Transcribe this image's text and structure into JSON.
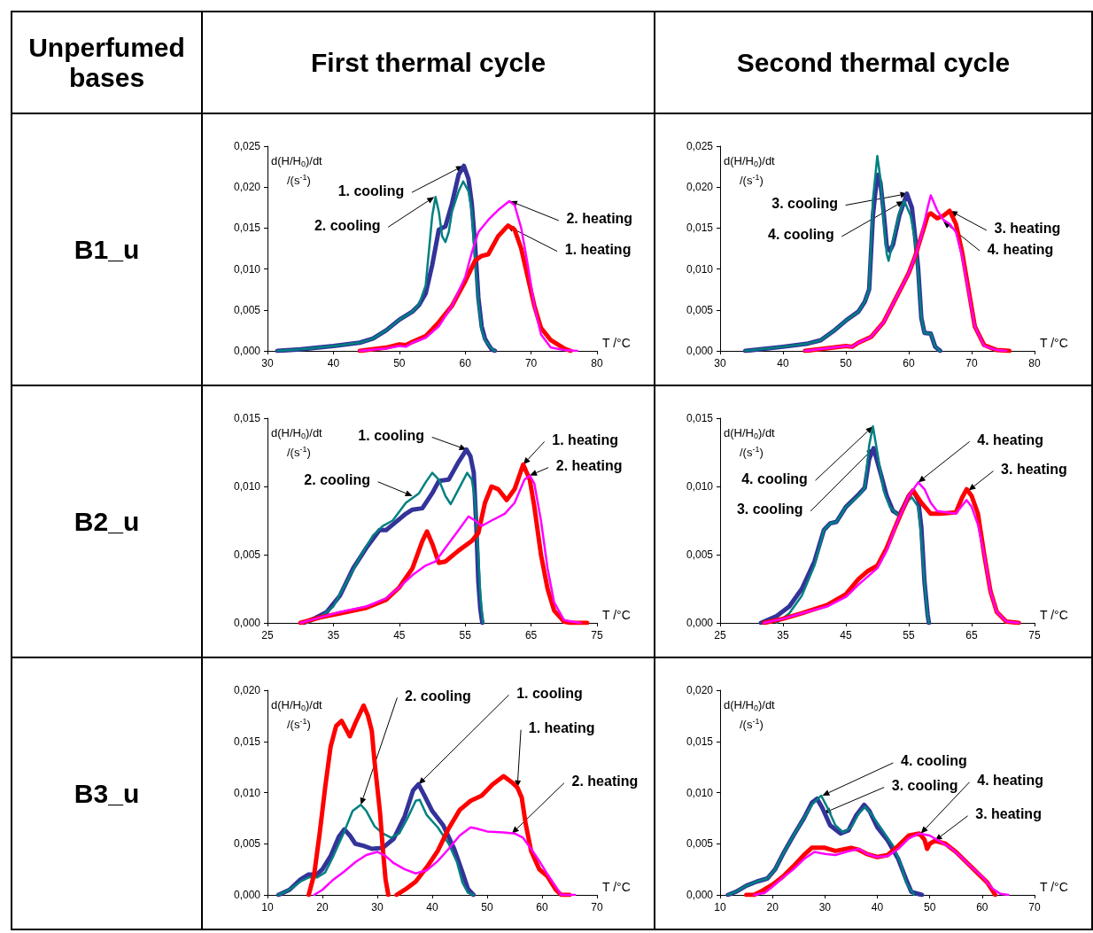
{
  "chart_data": [
    {
      "type": "line",
      "title": "First thermal cycle",
      "subtitle": "B1_u",
      "xlabel": "T /°C",
      "ylabel": "d(H/H$_{0}$)/dt /(s$^{-1}$)",
      "xlim": [
        30,
        80
      ],
      "xticks": [
        30,
        40,
        50,
        60,
        70,
        80
      ],
      "ylim": [
        0,
        0.025
      ],
      "yticks": [
        {
          "value": 0,
          "label": "0,000"
        },
        {
          "value": 0.005,
          "label": "0,005"
        },
        {
          "value": 0.01,
          "label": "0,010"
        },
        {
          "value": 0.015,
          "label": "0,015"
        },
        {
          "value": 0.02,
          "label": "0,020"
        },
        {
          "value": 0.025,
          "label": "0,025"
        }
      ],
      "annotations": [
        "Unperfumed bases",
        {
          "text": "1. cooling",
          "x": 59.7,
          "y": 0.0226
        },
        {
          "text": "2. cooling",
          "x": 55.3,
          "y": 0.0188
        },
        {
          "text": "2. heating",
          "x": 66.8,
          "y": 0.0183
        },
        {
          "text": "1. heating",
          "x": 66.3,
          "y": 0.0153
        }
      ],
      "series": [
        {
          "color": "#333399",
          "x": [
            31.5,
            35,
            40,
            44,
            46,
            48,
            50,
            52,
            53,
            54,
            55,
            56,
            57,
            58,
            59,
            59.8,
            60.5,
            61,
            61.5,
            62,
            62.5,
            63,
            63.5,
            64,
            64.5
          ],
          "values": [
            0,
            0.0002,
            0.0006,
            0.001,
            0.0015,
            0.0025,
            0.0038,
            0.0048,
            0.0056,
            0.007,
            0.0105,
            0.0148,
            0.0152,
            0.018,
            0.0215,
            0.0226,
            0.021,
            0.018,
            0.013,
            0.0065,
            0.003,
            0.0015,
            0.0008,
            0.0002,
            0
          ]
        },
        {
          "color": "#008080",
          "x": [
            31.5,
            35,
            40,
            44,
            46,
            48,
            50,
            52,
            53,
            54,
            55,
            55.5,
            56,
            56.5,
            57,
            57.5,
            58,
            59,
            59.7,
            60.5,
            61,
            61.5,
            62,
            62.5,
            63,
            64,
            64.5
          ],
          "values": [
            0,
            0.0002,
            0.0006,
            0.001,
            0.0015,
            0.0025,
            0.0038,
            0.0048,
            0.0057,
            0.008,
            0.0165,
            0.0188,
            0.017,
            0.014,
            0.0133,
            0.0145,
            0.017,
            0.0195,
            0.0207,
            0.0195,
            0.017,
            0.011,
            0.006,
            0.0025,
            0.0013,
            0.0003,
            0
          ]
        },
        {
          "color": "#ff0000",
          "x": [
            44,
            48,
            50,
            51,
            52,
            54,
            56,
            58,
            60,
            61.5,
            62.5,
            63.5,
            65,
            66.5,
            67.5,
            68.5,
            69.5,
            70.5,
            71.5,
            73,
            75,
            76
          ],
          "values": [
            0,
            0.0004,
            0.0008,
            0.0007,
            0.0011,
            0.0018,
            0.0035,
            0.0055,
            0.0085,
            0.011,
            0.0116,
            0.0118,
            0.014,
            0.0153,
            0.0148,
            0.0125,
            0.009,
            0.0055,
            0.0028,
            0.0013,
            0.0003,
            0
          ]
        },
        {
          "color": "#ff00ff",
          "x": [
            44,
            48,
            50,
            51,
            52,
            54,
            56,
            58,
            60,
            61,
            62,
            63.5,
            65,
            66.7,
            67.5,
            68.5,
            69.5,
            70.5,
            71.5,
            73,
            75,
            77
          ],
          "values": [
            0,
            0.0003,
            0.0006,
            0.0005,
            0.001,
            0.0016,
            0.003,
            0.0055,
            0.009,
            0.012,
            0.0145,
            0.016,
            0.0172,
            0.0183,
            0.0178,
            0.015,
            0.0105,
            0.0055,
            0.002,
            0.0004,
            0.0001,
            0
          ]
        }
      ]
    },
    {
      "type": "line",
      "title": "Second thermal cycle",
      "xlabel": "T /°C",
      "ylabel": "d(H/H$_{0}$)/dt /(s$^{-1}$)",
      "xlim": [
        30,
        80
      ],
      "xticks": [
        30,
        40,
        50,
        60,
        70,
        80
      ],
      "ylim": [
        0,
        0.025
      ],
      "yticks": [
        {
          "value": 0,
          "label": "0,000"
        },
        {
          "value": 0.005,
          "label": "0,005"
        },
        {
          "value": 0.01,
          "label": "0,010"
        },
        {
          "value": 0.015,
          "label": "0,015"
        },
        {
          "value": 0.02,
          "label": "0,020"
        },
        {
          "value": 0.025,
          "label": "0,025"
        }
      ],
      "annotations": [
        {
          "text": "3. cooling",
          "x": 59.8,
          "y": 0.0192
        },
        {
          "text": "4. cooling",
          "x": 59.2,
          "y": 0.0183
        },
        {
          "text": "3. heating",
          "x": 66.6,
          "y": 0.0171
        },
        {
          "text": "4. heating",
          "x": 65.5,
          "y": 0.0158
        }
      ],
      "series": [
        {
          "color": "#333399",
          "x": [
            34,
            40,
            44,
            46,
            48,
            50,
            52,
            53,
            53.7,
            54.3,
            54.7,
            55.1,
            55.5,
            56,
            56.5,
            57,
            57.5,
            58.5,
            59.7,
            60.5,
            61,
            61.5,
            62,
            62.5,
            63.5,
            64.2,
            65
          ],
          "values": [
            0,
            0.0005,
            0.0009,
            0.0013,
            0.0024,
            0.0037,
            0.0048,
            0.006,
            0.0075,
            0.0165,
            0.0195,
            0.0215,
            0.0205,
            0.017,
            0.0128,
            0.0122,
            0.013,
            0.0165,
            0.0192,
            0.0175,
            0.014,
            0.01,
            0.004,
            0.0022,
            0.0021,
            0.0005,
            0
          ]
        },
        {
          "color": "#008080",
          "x": [
            34,
            40,
            44,
            46,
            48,
            50,
            52,
            53,
            53.7,
            54.3,
            54.7,
            55,
            55.5,
            56,
            56.5,
            56.8,
            57.5,
            58.5,
            59.3,
            60.3,
            61,
            61.5,
            62,
            62.5,
            63.5,
            64.2,
            65
          ],
          "values": [
            0,
            0.0005,
            0.0009,
            0.0013,
            0.0024,
            0.0037,
            0.0048,
            0.006,
            0.0075,
            0.0185,
            0.0215,
            0.0238,
            0.021,
            0.016,
            0.0118,
            0.011,
            0.0135,
            0.0168,
            0.0183,
            0.0165,
            0.0135,
            0.0095,
            0.004,
            0.0022,
            0.0021,
            0.0005,
            0
          ]
        },
        {
          "color": "#ff0000",
          "x": [
            43.5,
            48,
            50,
            51,
            52,
            54,
            56,
            58,
            60,
            61,
            62,
            63,
            63.5,
            64.5,
            65.5,
            66.5,
            67.5,
            68.5,
            69.5,
            70.5,
            72,
            74,
            76
          ],
          "values": [
            0,
            0.0004,
            0.0006,
            0.0005,
            0.001,
            0.0017,
            0.0035,
            0.0065,
            0.0095,
            0.0115,
            0.014,
            0.0165,
            0.0168,
            0.0162,
            0.0165,
            0.0171,
            0.0155,
            0.012,
            0.0075,
            0.003,
            0.0007,
            0.0001,
            0
          ]
        },
        {
          "color": "#ff00ff",
          "x": [
            43.5,
            48,
            50,
            51,
            52,
            54,
            56,
            58,
            60,
            61,
            62,
            63,
            63.5,
            64.5,
            65.5,
            66.5,
            67.5,
            68.5,
            69.5,
            70.5,
            72,
            74,
            75.5
          ],
          "values": [
            0,
            0.0004,
            0.0006,
            0.0005,
            0.001,
            0.0017,
            0.0035,
            0.0065,
            0.0095,
            0.0115,
            0.014,
            0.0175,
            0.019,
            0.0172,
            0.016,
            0.0155,
            0.0145,
            0.0115,
            0.0072,
            0.003,
            0.0006,
            0.0001,
            0
          ]
        }
      ]
    },
    {
      "type": "line",
      "subtitle": "B2_u",
      "xlabel": "T /°C",
      "ylabel": "d(H/H$_{0}$)/dt /(s$^{-1}$)",
      "xlim": [
        25,
        75
      ],
      "xticks": [
        25,
        35,
        45,
        55,
        65,
        75
      ],
      "ylim": [
        0,
        0.015
      ],
      "yticks": [
        {
          "value": 0,
          "label": "0,000"
        },
        {
          "value": 0.005,
          "label": "0,005"
        },
        {
          "value": 0.01,
          "label": "0,010"
        },
        {
          "value": 0.015,
          "label": "0,015"
        }
      ],
      "annotations": [
        {
          "text": "1. cooling",
          "x": 55.2,
          "y": 0.0127
        },
        {
          "text": "2. cooling",
          "x": 47,
          "y": 0.0093
        },
        {
          "text": "1. heating",
          "x": 63.8,
          "y": 0.0116
        },
        {
          "text": "2. heating",
          "x": 64.8,
          "y": 0.0108
        }
      ],
      "series": [
        {
          "color": "#333399",
          "x": [
            30.5,
            32,
            34,
            36,
            38,
            40,
            42,
            43,
            44,
            46,
            47,
            48.5,
            50,
            51,
            52.5,
            54,
            55.2,
            55.8,
            56.3,
            56.7,
            57,
            57.3,
            57.6
          ],
          "values": [
            0,
            0.0003,
            0.0008,
            0.002,
            0.004,
            0.0055,
            0.0068,
            0.0068,
            0.0072,
            0.008,
            0.0083,
            0.0084,
            0.0095,
            0.0104,
            0.0105,
            0.0118,
            0.0127,
            0.0122,
            0.011,
            0.007,
            0.003,
            0.001,
            0
          ]
        },
        {
          "color": "#008080",
          "x": [
            31,
            33,
            35,
            37,
            39,
            41,
            42.5,
            44,
            46,
            48,
            49,
            50,
            51,
            52,
            52.8,
            54,
            55.3,
            56,
            56.5,
            57,
            57.3,
            57.7
          ],
          "values": [
            0,
            0.0004,
            0.0012,
            0.003,
            0.0048,
            0.0064,
            0.0071,
            0.0075,
            0.0088,
            0.0095,
            0.0103,
            0.011,
            0.0105,
            0.0093,
            0.0087,
            0.0098,
            0.011,
            0.0105,
            0.009,
            0.005,
            0.002,
            0
          ]
        },
        {
          "color": "#ff0000",
          "x": [
            30,
            33,
            36,
            40,
            43,
            45,
            47,
            48.5,
            49.2,
            50,
            51,
            52,
            54,
            56,
            57,
            58,
            59,
            60,
            61.3,
            62.5,
            63.8,
            64.8,
            65.5,
            66.5,
            67.5,
            68.5,
            70,
            71,
            73.5
          ],
          "values": [
            0,
            0.0004,
            0.0007,
            0.0011,
            0.0017,
            0.0026,
            0.004,
            0.006,
            0.0067,
            0.0058,
            0.0044,
            0.0045,
            0.0053,
            0.006,
            0.0066,
            0.0088,
            0.01,
            0.0098,
            0.009,
            0.0098,
            0.0116,
            0.0105,
            0.0085,
            0.005,
            0.0025,
            0.0009,
            0.0001,
            0,
            0
          ]
        },
        {
          "color": "#ff00ff",
          "x": [
            30,
            33,
            36,
            40,
            43,
            45,
            47,
            49,
            50.5,
            52,
            54,
            55.5,
            56.5,
            57.5,
            59,
            61,
            62.5,
            64,
            64.8,
            65.5,
            66.5,
            67.5,
            68.5,
            70,
            72.5
          ],
          "values": [
            0,
            0.0004,
            0.0008,
            0.0012,
            0.0018,
            0.0026,
            0.0035,
            0.0042,
            0.0045,
            0.0055,
            0.0068,
            0.0078,
            0.0075,
            0.0071,
            0.0075,
            0.008,
            0.0088,
            0.0105,
            0.0108,
            0.0102,
            0.0075,
            0.004,
            0.0015,
            0.0002,
            0
          ]
        }
      ]
    },
    {
      "type": "line",
      "xlabel": "T /°C",
      "ylabel": "d(H/H$_{0}$)/dt /(s$^{-1}$)",
      "xlim": [
        25,
        75
      ],
      "xticks": [
        25,
        35,
        45,
        55,
        65,
        75
      ],
      "ylim": [
        0,
        0.015
      ],
      "yticks": [
        {
          "value": 0,
          "label": "0,000"
        },
        {
          "value": 0.005,
          "label": "0,005"
        },
        {
          "value": 0.01,
          "label": "0,010"
        },
        {
          "value": 0.015,
          "label": "0,015"
        }
      ],
      "annotations": [
        {
          "text": "4. cooling",
          "x": 49.3,
          "y": 0.0144
        },
        {
          "text": "3. cooling",
          "x": 49.4,
          "y": 0.0128
        },
        {
          "text": "4. heating",
          "x": 56.5,
          "y": 0.0103
        },
        {
          "text": "3. heating",
          "x": 64.5,
          "y": 0.0097
        }
      ],
      "series": [
        {
          "color": "#333399",
          "x": [
            31.5,
            34,
            36,
            38,
            40,
            41.5,
            42.5,
            43.5,
            45,
            47,
            48,
            48.7,
            49.4,
            50.5,
            51.5,
            52.5,
            53.5,
            55,
            55.7,
            56.5,
            57,
            57.5,
            58,
            58.2
          ],
          "values": [
            0,
            0.0005,
            0.0012,
            0.0025,
            0.0045,
            0.0068,
            0.0073,
            0.0074,
            0.0085,
            0.0094,
            0.0099,
            0.012,
            0.0128,
            0.011,
            0.0093,
            0.0082,
            0.0079,
            0.0093,
            0.0097,
            0.009,
            0.007,
            0.003,
            0.0006,
            0
          ]
        },
        {
          "color": "#008080",
          "x": [
            34,
            36,
            38,
            40,
            41.5,
            42.5,
            43.5,
            45,
            47,
            48,
            48.7,
            49.3,
            50,
            51,
            52,
            53.5,
            55,
            55.5,
            56.5,
            57,
            57.5,
            58,
            58.2
          ],
          "values": [
            0,
            0.0007,
            0.002,
            0.0042,
            0.0068,
            0.0073,
            0.0074,
            0.0085,
            0.0093,
            0.0099,
            0.013,
            0.0144,
            0.0125,
            0.0097,
            0.0085,
            0.0078,
            0.009,
            0.0092,
            0.0085,
            0.0062,
            0.003,
            0.0005,
            0
          ]
        },
        {
          "color": "#ff0000",
          "x": [
            32,
            35,
            38,
            42,
            45,
            47,
            48.5,
            50,
            51.5,
            53,
            55,
            55.7,
            57,
            58.5,
            60,
            62.5,
            63.5,
            64.2,
            65,
            66,
            67,
            68,
            69,
            70.5,
            72.5
          ],
          "values": [
            0,
            0.0003,
            0.0007,
            0.0013,
            0.0021,
            0.0032,
            0.0038,
            0.0042,
            0.0055,
            0.0072,
            0.0093,
            0.0097,
            0.0088,
            0.008,
            0.008,
            0.0081,
            0.0092,
            0.0098,
            0.0093,
            0.008,
            0.005,
            0.0023,
            0.0008,
            0.0001,
            0
          ]
        },
        {
          "color": "#ff00ff",
          "x": [
            32,
            35,
            38,
            42,
            45,
            47,
            48.5,
            50,
            51.5,
            53,
            55,
            56.5,
            57.5,
            58.5,
            59.5,
            62.5,
            63.5,
            64.2,
            65,
            66,
            67,
            68,
            69,
            70.5,
            72.5
          ],
          "values": [
            0,
            0.0003,
            0.0007,
            0.0012,
            0.0019,
            0.0028,
            0.0034,
            0.004,
            0.0053,
            0.0072,
            0.0093,
            0.0103,
            0.0098,
            0.0088,
            0.0082,
            0.008,
            0.0086,
            0.009,
            0.0085,
            0.0072,
            0.005,
            0.0023,
            0.0008,
            0.0001,
            0
          ]
        }
      ]
    },
    {
      "type": "line",
      "subtitle": "B3_u",
      "xlabel": "T /°C",
      "ylabel": "d(H/H$_{0}$)/dt /(s$^{-1}$)",
      "xlim": [
        10,
        70
      ],
      "xticks": [
        10,
        20,
        30,
        40,
        50,
        60,
        70
      ],
      "ylim": [
        0,
        0.02
      ],
      "yticks": [
        {
          "value": 0,
          "label": "0,000"
        },
        {
          "value": 0.005,
          "label": "0,005"
        },
        {
          "value": 0.01,
          "label": "0,010"
        },
        {
          "value": 0.015,
          "label": "0,015"
        },
        {
          "value": 0.02,
          "label": "0,020"
        }
      ],
      "annotations": [
        {
          "text": "2. cooling",
          "x": 27,
          "y": 0.0088
        },
        {
          "text": "1. cooling",
          "x": 37.5,
          "y": 0.0108
        },
        {
          "text": "1. heating",
          "x": 55.5,
          "y": 0.0105
        },
        {
          "text": "2. heating",
          "x": 54.5,
          "y": 0.006
        }
      ],
      "series": [
        {
          "color": "#333399",
          "x": [
            12,
            14,
            16,
            17.5,
            19,
            20,
            21.5,
            23,
            24,
            25,
            26,
            27.5,
            29,
            31,
            33,
            35,
            36.5,
            37.5,
            38.5,
            40,
            42,
            44,
            45.5,
            46.5,
            47.5
          ],
          "values": [
            0,
            0.0005,
            0.0015,
            0.002,
            0.002,
            0.0025,
            0.0038,
            0.0057,
            0.0064,
            0.0058,
            0.005,
            0.0048,
            0.0045,
            0.0046,
            0.0055,
            0.0077,
            0.0102,
            0.0108,
            0.0098,
            0.0082,
            0.0068,
            0.0045,
            0.0022,
            0.0006,
            0
          ]
        },
        {
          "color": "#008080",
          "x": [
            12,
            14,
            16,
            17.5,
            19,
            20.5,
            22,
            24,
            25.5,
            27,
            28,
            29.5,
            31,
            32.5,
            34,
            35.5,
            37,
            37.7,
            39,
            41,
            43,
            44.5,
            45.5,
            46.5,
            47.5
          ],
          "values": [
            0,
            0.0005,
            0.0013,
            0.0017,
            0.0017,
            0.0022,
            0.0038,
            0.0062,
            0.0082,
            0.0088,
            0.0082,
            0.0067,
            0.006,
            0.0056,
            0.006,
            0.0075,
            0.0092,
            0.0093,
            0.0078,
            0.0066,
            0.005,
            0.0032,
            0.0012,
            0.0002,
            0
          ]
        },
        {
          "color": "#ff0000",
          "x": [
            17.5,
            18.5,
            19.5,
            20.5,
            21.5,
            22.5,
            23.5,
            24.5,
            25,
            26,
            27.5,
            28.3,
            29,
            29.5,
            30.5,
            31,
            31.5,
            32,
            32.8,
            33.5,
            35,
            37,
            39,
            41,
            43,
            45,
            47,
            49,
            51,
            53,
            54.5,
            55.5,
            56.3,
            57,
            58,
            59.5,
            61,
            62.5,
            63.5,
            65
          ],
          "values": [
            0,
            0.002,
            0.006,
            0.0105,
            0.0145,
            0.0165,
            0.017,
            0.016,
            0.0155,
            0.0168,
            0.0185,
            0.0175,
            0.016,
            0.013,
            0.008,
            0.0045,
            0.0015,
            0,
            null,
            0,
            0.0005,
            0.0013,
            0.0027,
            0.0043,
            0.0065,
            0.0083,
            0.0092,
            0.0097,
            0.0108,
            0.0116,
            0.011,
            0.0105,
            0.0095,
            0.007,
            0.0043,
            0.0025,
            0.0018,
            0.0005,
            0,
            0
          ]
        },
        {
          "color": "#ff00ff",
          "x": [
            18.5,
            20,
            22,
            24,
            26,
            28,
            30,
            31.5,
            33,
            35,
            37,
            39,
            41,
            43,
            45,
            47,
            48,
            50,
            53,
            55,
            56.5,
            58,
            59.5,
            61,
            62.5,
            63.5,
            66
          ],
          "values": [
            0,
            0.0005,
            0.0015,
            0.0023,
            0.0032,
            0.0039,
            0.0042,
            0.0038,
            0.0031,
            0.0025,
            0.0021,
            0.0024,
            0.0033,
            0.0045,
            0.0058,
            0.0066,
            0.0065,
            0.0062,
            0.0061,
            0.006,
            0.0056,
            0.0045,
            0.0033,
            0.002,
            0.0008,
            0,
            0
          ]
        }
      ]
    },
    {
      "type": "line",
      "xlabel": "T /°C",
      "ylabel": "d(H/H$_{0}$)/dt /(s$^{-1}$)",
      "xlim": [
        10,
        70
      ],
      "xticks": [
        10,
        20,
        30,
        40,
        50,
        60,
        70
      ],
      "ylim": [
        0,
        0.02
      ],
      "yticks": [
        {
          "value": 0,
          "label": "0,000"
        },
        {
          "value": 0.005,
          "label": "0,005"
        },
        {
          "value": 0.01,
          "label": "0,010"
        },
        {
          "value": 0.015,
          "label": "0,015"
        },
        {
          "value": 0.02,
          "label": "0,020"
        }
      ],
      "annotations": [
        {
          "text": "4. cooling",
          "x": 29.5,
          "y": 0.0097
        },
        {
          "text": "3. cooling",
          "x": 29.8,
          "y": 0.008
        },
        {
          "text": "4. heating",
          "x": 48.3,
          "y": 0.006
        },
        {
          "text": "3. heating",
          "x": 51,
          "y": 0.0053
        }
      ],
      "series": [
        {
          "color": "#333399",
          "x": [
            11.5,
            13,
            15,
            17,
            19,
            20.5,
            22,
            24,
            26,
            27.5,
            28.5,
            29.5,
            31,
            33,
            34.5,
            36,
            37.5,
            38.5,
            40,
            42,
            44,
            45.5,
            46.5,
            48.5
          ],
          "values": [
            0,
            0.0003,
            0.0009,
            0.0013,
            0.0016,
            0.0025,
            0.004,
            0.0058,
            0.0075,
            0.009,
            0.0094,
            0.0085,
            0.0068,
            0.006,
            0.0063,
            0.0078,
            0.0088,
            0.0082,
            0.0066,
            0.0053,
            0.0035,
            0.0015,
            0.0003,
            0
          ]
        },
        {
          "color": "#008080",
          "x": [
            11.5,
            13,
            15,
            17,
            19,
            20.5,
            22,
            24,
            26,
            27.5,
            29.3,
            30.5,
            32,
            33.5,
            35,
            36.5,
            37.7,
            39,
            41,
            43,
            44.5,
            45.5,
            47
          ],
          "values": [
            0,
            0.0003,
            0.0009,
            0.0013,
            0.0016,
            0.0025,
            0.004,
            0.0058,
            0.0075,
            0.0088,
            0.0097,
            0.0085,
            0.0068,
            0.0061,
            0.0066,
            0.008,
            0.0086,
            0.0078,
            0.0063,
            0.0048,
            0.003,
            0.0012,
            0
          ]
        },
        {
          "color": "#ff0000",
          "x": [
            15,
            16.5,
            18,
            20,
            22,
            24,
            26,
            27.5,
            30,
            32,
            35,
            36.5,
            38,
            40,
            42,
            44,
            46,
            48,
            49,
            49.5,
            50,
            51,
            53,
            55,
            57,
            59,
            61,
            62.5
          ],
          "values": [
            0,
            0,
            0.0004,
            0.001,
            0.0018,
            0.0028,
            0.0039,
            0.0046,
            0.0046,
            0.0043,
            0.0046,
            0.0044,
            0.004,
            0.0037,
            0.0039,
            0.0048,
            0.0058,
            0.006,
            0.0054,
            0.0045,
            0.005,
            0.0053,
            0.005,
            0.0042,
            0.0032,
            0.0022,
            0.0012,
            0
          ]
        },
        {
          "color": "#ff00ff",
          "x": [
            16.5,
            18.5,
            20,
            22,
            24,
            26,
            28,
            30,
            32,
            34,
            36.5,
            38,
            40,
            42,
            44,
            46,
            48,
            50,
            52,
            54,
            56,
            58,
            60,
            62,
            63.5,
            65
          ],
          "values": [
            0,
            0.0002,
            0.0008,
            0.0017,
            0.0025,
            0.0035,
            0.0042,
            0.004,
            0.0039,
            0.0042,
            0.0045,
            0.004,
            0.0037,
            0.0038,
            0.0045,
            0.0055,
            0.006,
            0.0058,
            0.0052,
            0.0046,
            0.0037,
            0.0027,
            0.0018,
            0.0006,
            0.0001,
            0
          ]
        }
      ]
    }
  ]
}
